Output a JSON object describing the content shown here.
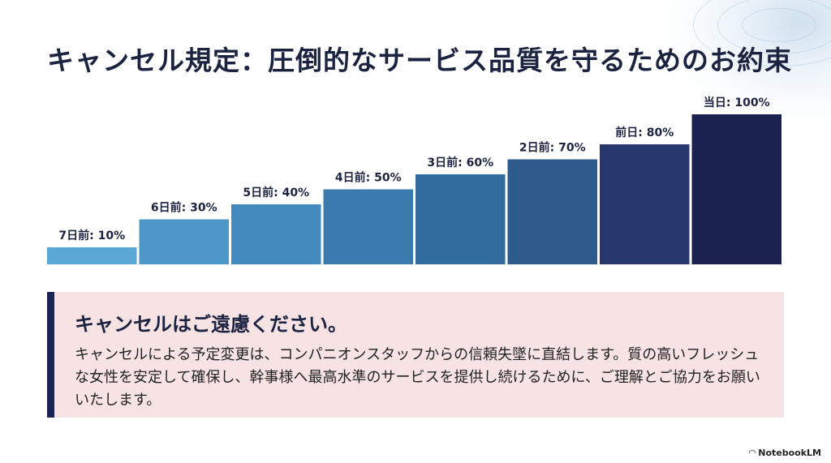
{
  "title": "キャンセル規定：圧倒的なサービス品質を守るためのお約束",
  "chart_data": {
    "type": "bar",
    "categories": [
      "7日前",
      "6日前",
      "5日前",
      "4日前",
      "3日前",
      "2日前",
      "前日",
      "当日"
    ],
    "values": [
      10,
      30,
      40,
      50,
      60,
      70,
      80,
      100
    ],
    "data_labels": [
      "7日前: 10%",
      "6日前: 30%",
      "5日前: 40%",
      "4日前: 50%",
      "3日前: 60%",
      "2日前: 70%",
      "前日: 80%",
      "当日: 100%"
    ],
    "ylim": [
      0,
      100
    ],
    "grid": false,
    "colors": [
      "#5ba7d6",
      "#4d97c9",
      "#4389bd",
      "#3a7aae",
      "#336c9f",
      "#2e5a8c",
      "#27376d",
      "#1c2250"
    ]
  },
  "note": {
    "heading": "キャンセルはご遠慮ください。",
    "body": "キャンセルによる予定変更は、コンパニオンスタッフからの信頼失墜に直結します。質の高いフレッシュな女性を安定して確保し、幹事様へ最高水準のサービスを提供し続けるために、ご理解とご協力をお願いいたします。"
  },
  "brand": "NotebookLM"
}
